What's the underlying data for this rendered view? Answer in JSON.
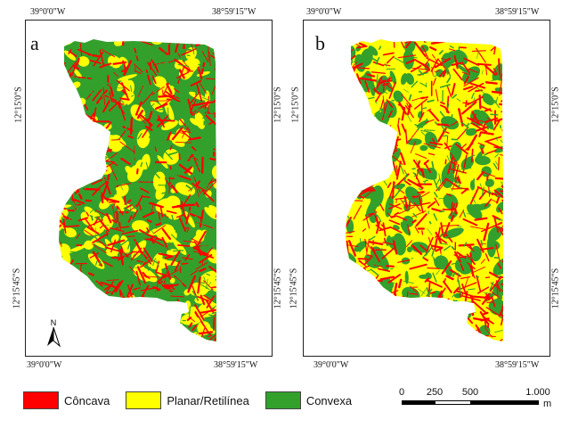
{
  "panels": [
    {
      "letter": "a",
      "coord_top_left": "39°0'0\"W",
      "coord_top_right": "38°59'15\"W",
      "coord_bottom_left": "39°0'0\"W",
      "coord_bottom_right": "38°59'15\"W",
      "coord_left_top": "12°15'0\"S",
      "coord_left_bottom": "12°15'45\"S",
      "coord_right_top": "12°15'0\"S",
      "coord_right_bottom": "12°15'45\"S",
      "north_label": "N"
    },
    {
      "letter": "b",
      "coord_top_left": "39°0'0\"W",
      "coord_top_right": "38°59'15\"W",
      "coord_bottom_left": "39°0'0\"W",
      "coord_bottom_right": "38°59'15\"W",
      "coord_left_top": "12°15'0\"S",
      "coord_left_bottom": "12°15'45\"S",
      "coord_right_top": "12°15'0\"S",
      "coord_right_bottom": "12°15'45\"S"
    }
  ],
  "legend": [
    {
      "label": "Côncava",
      "color": "#ff0000"
    },
    {
      "label": "Planar/Retilínea",
      "color": "#ffff00"
    },
    {
      "label": "Convexa",
      "color": "#33a02c"
    }
  ],
  "scale": {
    "ticks": [
      "0",
      "250",
      "500",
      "1.000"
    ],
    "unit": "m"
  },
  "colors": {
    "concave": "#ff0000",
    "planar": "#ffff00",
    "convex": "#33a02c"
  }
}
